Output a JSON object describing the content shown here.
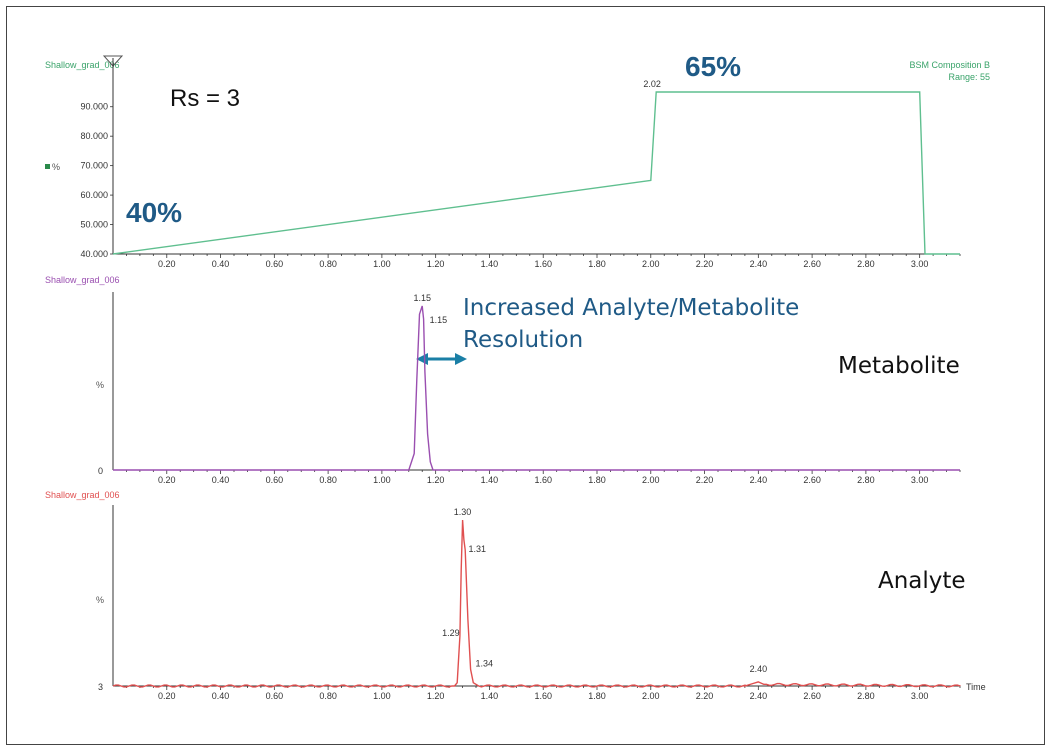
{
  "chart_data": [
    {
      "type": "line",
      "file_label": "Shallow_grad_006",
      "trace_label": "BSM Composition B",
      "range_label": "Range: 55",
      "y_axis_label": "%",
      "xlim": [
        0.0,
        3.15
      ],
      "ylim": [
        40.0,
        95.0
      ],
      "x_ticks": [
        "0.20",
        "0.40",
        "0.60",
        "0.80",
        "1.00",
        "1.20",
        "1.40",
        "1.60",
        "1.80",
        "2.00",
        "2.20",
        "2.40",
        "2.60",
        "2.80",
        "3.00"
      ],
      "y_ticks": [
        "40.000",
        "50.000",
        "60.000",
        "70.000",
        "80.000",
        "90.000"
      ],
      "series": [
        {
          "color": "#5fbf8f",
          "x": [
            0.0,
            2.0,
            2.02,
            3.0,
            3.02,
            3.15
          ],
          "y": [
            40.0,
            65.0,
            95.0,
            95.0,
            40.0,
            40.0
          ]
        }
      ],
      "peak_labels": [
        {
          "x": 2.02,
          "y": 95.0,
          "text": "2.02"
        }
      ],
      "annotations": {
        "rs": "Rs = 3",
        "start_pct": "40%",
        "end_pct": "65%"
      }
    },
    {
      "type": "line",
      "file_label": "Shallow_grad_006",
      "y_axis_label": "%",
      "y_zero_label": "0",
      "xlim": [
        0.0,
        3.15
      ],
      "ylim": [
        0,
        100
      ],
      "x_ticks": [
        "0.20",
        "0.40",
        "0.60",
        "0.80",
        "1.00",
        "1.20",
        "1.40",
        "1.60",
        "1.80",
        "2.00",
        "2.20",
        "2.40",
        "2.60",
        "2.80",
        "3.00"
      ],
      "series": [
        {
          "color": "#9a4fb0",
          "x": [
            0.0,
            1.1,
            1.12,
            1.13,
            1.14,
            1.15,
            1.155,
            1.16,
            1.17,
            1.18,
            1.19,
            3.15
          ],
          "y": [
            0,
            0,
            10,
            55,
            95,
            100,
            92,
            60,
            22,
            5,
            0,
            0
          ]
        }
      ],
      "peak_labels": [
        {
          "x": 1.15,
          "y": 100,
          "text": "1.15"
        },
        {
          "x": 1.158,
          "y": 92,
          "text": "1.15"
        }
      ],
      "annotations": {
        "resolution_line1": "Increased Analyte/Metabolite",
        "resolution_line2": "Resolution",
        "name": "Metabolite"
      }
    },
    {
      "type": "line",
      "file_label": "Shallow_grad_006",
      "y_axis_label": "%",
      "y_zero_label": "3",
      "x_axis_label": "Time",
      "xlim": [
        0.0,
        3.15
      ],
      "ylim": [
        0,
        100
      ],
      "x_ticks": [
        "0.20",
        "0.40",
        "0.60",
        "0.80",
        "1.00",
        "1.20",
        "1.40",
        "1.60",
        "1.80",
        "2.00",
        "2.20",
        "2.40",
        "2.60",
        "2.80",
        "3.00"
      ],
      "series": [
        {
          "color": "#e05050",
          "x": [
            0.0,
            1.27,
            1.28,
            1.29,
            1.295,
            1.3,
            1.305,
            1.31,
            1.32,
            1.33,
            1.34,
            1.36,
            2.35,
            2.38,
            2.4,
            2.42,
            3.15
          ],
          "y": [
            0,
            0,
            2,
            30,
            70,
            100,
            88,
            82,
            40,
            10,
            2,
            0,
            0,
            1.5,
            2.5,
            1,
            0
          ]
        }
      ],
      "peak_labels": [
        {
          "x": 1.3,
          "y": 100,
          "text": "1.30"
        },
        {
          "x": 1.31,
          "y": 82,
          "text": "1.31"
        },
        {
          "x": 1.29,
          "y": 30,
          "text": "1.29"
        },
        {
          "x": 1.34,
          "y": 2,
          "text": "1.34"
        },
        {
          "x": 2.4,
          "y": 2.5,
          "text": "2.40"
        }
      ],
      "annotations": {
        "name": "Analyte"
      }
    }
  ]
}
